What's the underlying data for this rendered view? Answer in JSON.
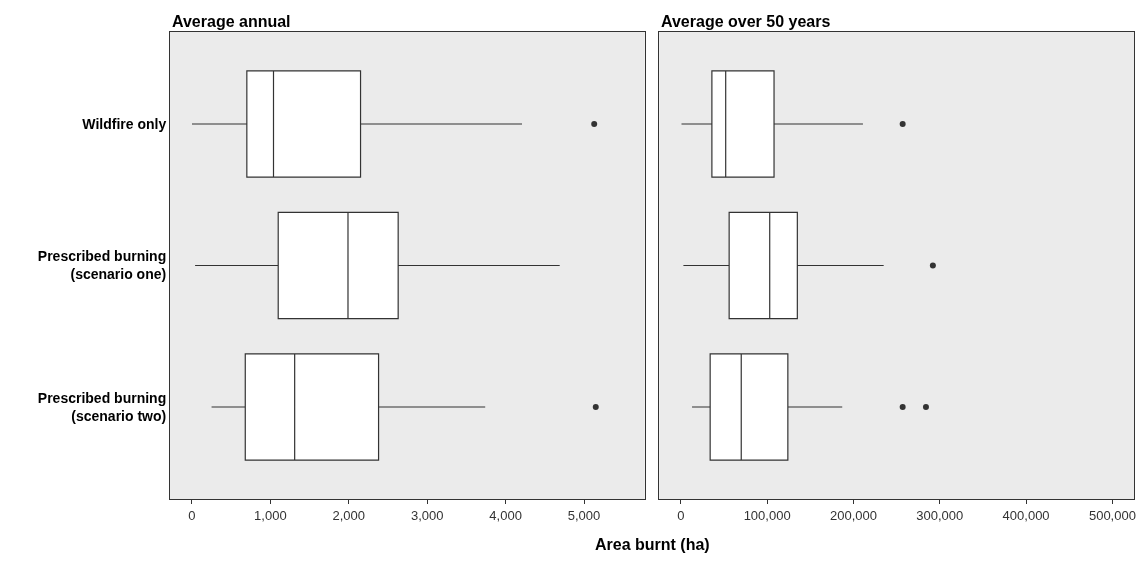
{
  "chart_data": [
    {
      "type": "box",
      "orientation": "horizontal",
      "title": "Average annual",
      "xlabel": "Area burnt (ha)",
      "categories": [
        "Wildfire only",
        "Prescribed burning\n(scenario one)",
        "Prescribed burning\n(scenario two)"
      ],
      "boxes": [
        {
          "low": 0,
          "q1": 700,
          "median": 1040,
          "q3": 2150,
          "high": 4210,
          "outliers": [
            5130
          ]
        },
        {
          "low": 40,
          "q1": 1100,
          "median": 1990,
          "q3": 2630,
          "high": 4690
        },
        {
          "low": 250,
          "q1": 680,
          "median": 1310,
          "q3": 2380,
          "high": 3740,
          "outliers": [
            5150
          ]
        }
      ],
      "xlim": [
        -280,
        5775
      ],
      "xticks": [
        {
          "value": 0,
          "label": "0"
        },
        {
          "value": 1000,
          "label": "1,000"
        },
        {
          "value": 2000,
          "label": "2,000"
        },
        {
          "value": 3000,
          "label": "3,000"
        },
        {
          "value": 4000,
          "label": "4,000"
        },
        {
          "value": 5000,
          "label": "5,000"
        }
      ],
      "grid": false
    },
    {
      "type": "box",
      "orientation": "horizontal",
      "title": "Average over 50 years",
      "categories": [
        null,
        null,
        null
      ],
      "boxes": [
        {
          "low": 800,
          "q1": 36000,
          "median": 52000,
          "q3": 108000,
          "high": 211000,
          "outliers": [
            257000
          ]
        },
        {
          "low": 3000,
          "q1": 56000,
          "median": 103000,
          "q3": 135000,
          "high": 235000,
          "outliers": [
            292000
          ]
        },
        {
          "low": 13000,
          "q1": 34000,
          "median": 70000,
          "q3": 124000,
          "high": 187000,
          "outliers": [
            257000,
            284000
          ]
        }
      ],
      "xlim": [
        -25000,
        525000
      ],
      "xticks": [
        {
          "value": 0,
          "label": "0"
        },
        {
          "value": 100000,
          "label": "100,000"
        },
        {
          "value": 200000,
          "label": "200,000"
        },
        {
          "value": 300000,
          "label": "300,000"
        },
        {
          "value": 400000,
          "label": "400,000"
        },
        {
          "value": 500000,
          "label": "500,000"
        }
      ],
      "grid": false,
      "tick_labels": "x"
    }
  ]
}
